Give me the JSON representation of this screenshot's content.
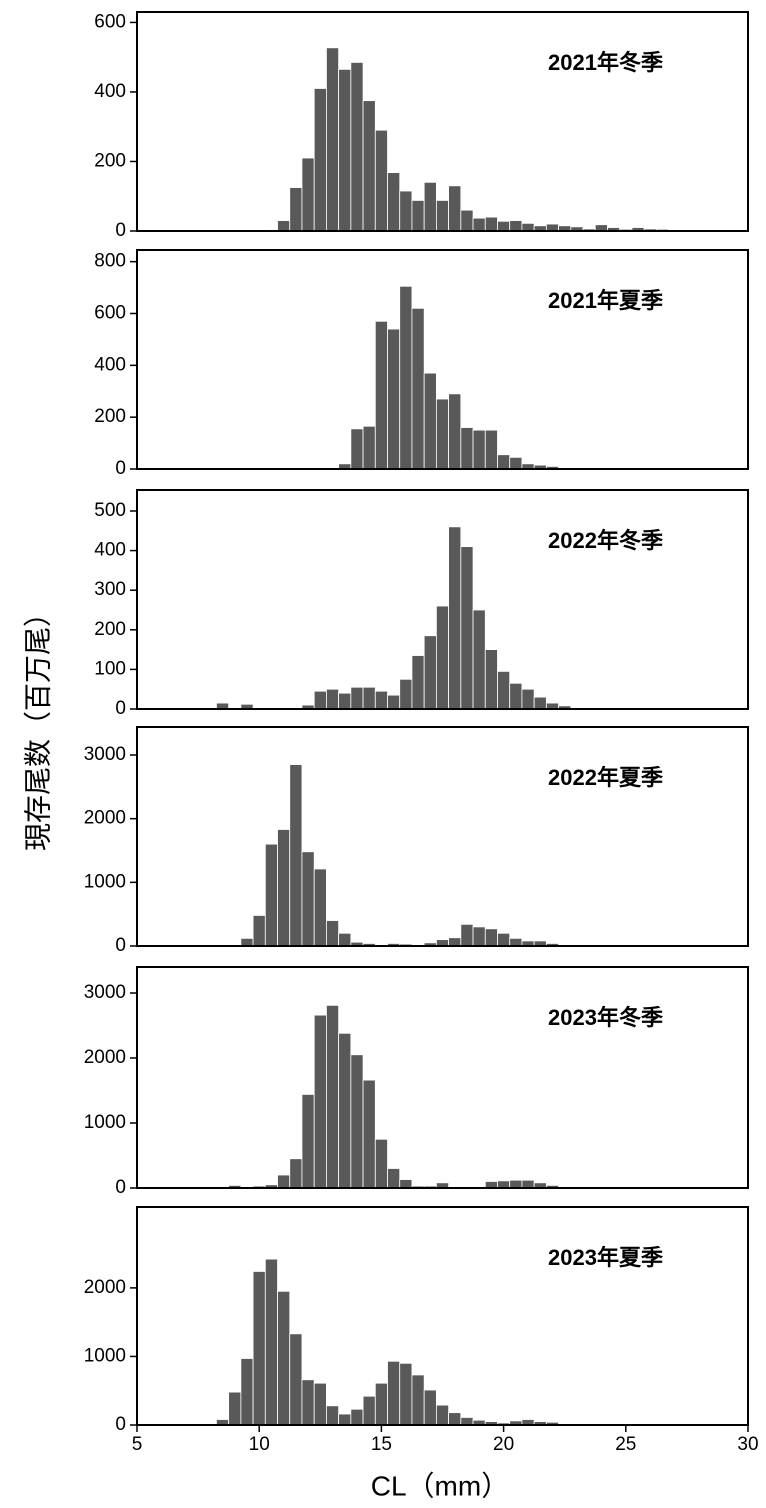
{
  "ylabel": "現存尾数（百万尾）",
  "xlabel": "CL（mm）",
  "chart_data": [
    {
      "type": "histogram",
      "annotation": "2021年冬季",
      "color": "#595959",
      "bins": [
        7.25,
        7.75,
        8.25,
        8.75,
        9.25,
        9.75,
        10.25,
        10.75,
        11.25,
        11.75,
        12.25,
        12.75,
        13.25,
        13.75,
        14.25,
        14.75,
        15.25,
        15.75,
        16.25,
        16.75,
        17.25,
        17.75,
        18.25,
        18.75,
        19.25,
        19.75,
        20.25,
        20.75,
        21.25,
        21.75,
        22.25,
        22.75,
        23.25,
        23.75,
        24.25,
        24.75,
        25.25,
        25.75,
        26.25,
        26.75,
        27.25,
        27.75,
        28.25
      ],
      "values": [
        0,
        0,
        0,
        0,
        0,
        0,
        3,
        30,
        125,
        210,
        410,
        527,
        465,
        485,
        375,
        290,
        168,
        115,
        88,
        140,
        88,
        130,
        60,
        37,
        40,
        28,
        30,
        22,
        15,
        20,
        15,
        12,
        6,
        18,
        10,
        5,
        10,
        6,
        5,
        0,
        0,
        0
      ],
      "xlim": [
        5,
        30
      ],
      "ylim": [
        0,
        630
      ],
      "yticks": [
        0,
        200,
        400,
        600
      ]
    },
    {
      "type": "histogram",
      "annotation": "2021年夏季",
      "color": "#595959",
      "bins": [
        7.25,
        7.75,
        8.25,
        8.75,
        9.25,
        9.75,
        10.25,
        10.75,
        11.25,
        11.75,
        12.25,
        12.75,
        13.25,
        13.75,
        14.25,
        14.75,
        15.25,
        15.75,
        16.25,
        16.75,
        17.25,
        17.75,
        18.25,
        18.75,
        19.25,
        19.75,
        20.25,
        20.75,
        21.25,
        21.75,
        22.25,
        22.75,
        23.25,
        23.75,
        24.25,
        24.75,
        25.25,
        25.75,
        26.25,
        26.75,
        27.25,
        27.75,
        28.25
      ],
      "values": [
        0,
        0,
        0,
        0,
        0,
        0,
        0,
        0,
        0,
        0,
        0,
        0,
        20,
        155,
        165,
        570,
        540,
        705,
        620,
        370,
        270,
        290,
        160,
        150,
        150,
        55,
        45,
        20,
        15,
        10,
        5,
        0,
        0,
        0,
        0,
        0,
        0,
        0,
        0,
        0,
        0,
        0
      ],
      "xlim": [
        5,
        30
      ],
      "ylim": [
        0,
        845
      ],
      "yticks": [
        0,
        200,
        400,
        600,
        800
      ]
    },
    {
      "type": "histogram",
      "annotation": "2022年冬季",
      "color": "#595959",
      "bins": [
        7.25,
        7.75,
        8.25,
        8.75,
        9.25,
        9.75,
        10.25,
        10.75,
        11.25,
        11.75,
        12.25,
        12.75,
        13.25,
        13.75,
        14.25,
        14.75,
        15.25,
        15.75,
        16.25,
        16.75,
        17.25,
        17.75,
        18.25,
        18.75,
        19.25,
        19.75,
        20.25,
        20.75,
        21.25,
        21.75,
        22.25,
        22.75,
        23.25,
        23.75,
        24.25,
        24.75,
        25.25,
        25.75,
        26.25,
        26.75,
        27.25,
        27.75,
        28.25
      ],
      "values": [
        0,
        0,
        15,
        0,
        12,
        0,
        0,
        0,
        0,
        10,
        45,
        50,
        40,
        55,
        55,
        45,
        35,
        75,
        135,
        185,
        260,
        460,
        410,
        250,
        150,
        95,
        65,
        50,
        30,
        15,
        8,
        0,
        0,
        0,
        0,
        0,
        0,
        0,
        0,
        0,
        0,
        0
      ],
      "xlim": [
        5,
        30
      ],
      "ylim": [
        0,
        553
      ],
      "yticks": [
        0,
        100,
        200,
        300,
        400,
        500
      ]
    },
    {
      "type": "histogram",
      "annotation": "2022年夏季",
      "color": "#595959",
      "bins": [
        7.25,
        7.75,
        8.25,
        8.75,
        9.25,
        9.75,
        10.25,
        10.75,
        11.25,
        11.75,
        12.25,
        12.75,
        13.25,
        13.75,
        14.25,
        14.75,
        15.25,
        15.75,
        16.25,
        16.75,
        17.25,
        17.75,
        18.25,
        18.75,
        19.25,
        19.75,
        20.25,
        20.75,
        21.25,
        21.75,
        22.25,
        22.75,
        23.25,
        23.75,
        24.25,
        24.75,
        25.25,
        25.75,
        26.25,
        26.75,
        27.25,
        27.75,
        28.25
      ],
      "values": [
        0,
        0,
        0,
        0,
        120,
        480,
        1600,
        1830,
        2850,
        1480,
        1210,
        400,
        200,
        60,
        40,
        20,
        40,
        30,
        20,
        50,
        100,
        130,
        340,
        300,
        270,
        200,
        120,
        80,
        80,
        40,
        15,
        0,
        0,
        0,
        0,
        0,
        0,
        0,
        0,
        0,
        0,
        0
      ],
      "xlim": [
        5,
        30
      ],
      "ylim": [
        0,
        3440
      ],
      "yticks": [
        0,
        1000,
        2000,
        3000
      ]
    },
    {
      "type": "histogram",
      "annotation": "2023年冬季",
      "color": "#595959",
      "bins": [
        7.25,
        7.75,
        8.25,
        8.75,
        9.25,
        9.75,
        10.25,
        10.75,
        11.25,
        11.75,
        12.25,
        12.75,
        13.25,
        13.75,
        14.25,
        14.75,
        15.25,
        15.75,
        16.25,
        16.75,
        17.25,
        17.75,
        18.25,
        18.75,
        19.25,
        19.75,
        20.25,
        20.75,
        21.25,
        21.75,
        22.25,
        22.75,
        23.25,
        23.75,
        24.25,
        24.75,
        25.25,
        25.75,
        26.25,
        26.75,
        27.25,
        27.75,
        28.25
      ],
      "values": [
        10,
        10,
        20,
        40,
        10,
        30,
        50,
        200,
        450,
        1440,
        2660,
        2810,
        2380,
        2050,
        1660,
        750,
        300,
        130,
        30,
        30,
        80,
        20,
        20,
        20,
        100,
        110,
        120,
        120,
        80,
        40,
        20,
        10,
        0,
        0,
        0,
        0,
        0,
        0,
        0,
        0,
        0,
        0
      ],
      "xlim": [
        5,
        30
      ],
      "ylim": [
        0,
        3400
      ],
      "yticks": [
        0,
        1000,
        2000,
        3000
      ]
    },
    {
      "type": "histogram",
      "annotation": "2023年夏季",
      "color": "#595959",
      "bins": [
        7.25,
        7.75,
        8.25,
        8.75,
        9.25,
        9.75,
        10.25,
        10.75,
        11.25,
        11.75,
        12.25,
        12.75,
        13.25,
        13.75,
        14.25,
        14.75,
        15.25,
        15.75,
        16.25,
        16.75,
        17.25,
        17.75,
        18.25,
        18.75,
        19.25,
        19.75,
        20.25,
        20.75,
        21.25,
        21.75,
        22.25,
        22.75,
        23.25,
        23.75,
        24.25,
        24.75,
        25.25,
        25.75,
        26.25,
        26.75,
        27.25,
        27.75,
        28.25
      ],
      "values": [
        0,
        0,
        80,
        480,
        970,
        2240,
        2420,
        1950,
        1330,
        660,
        610,
        280,
        160,
        230,
        420,
        610,
        930,
        900,
        730,
        510,
        290,
        180,
        110,
        70,
        50,
        30,
        60,
        80,
        50,
        40,
        20,
        10,
        0,
        0,
        0,
        0,
        0,
        0,
        0,
        0,
        0,
        0
      ],
      "xlim": [
        5,
        30
      ],
      "ylim": [
        0,
        3180
      ],
      "yticks": [
        0,
        1000,
        2000
      ],
      "xticks": [
        5,
        10,
        15,
        20,
        25,
        30
      ]
    }
  ]
}
